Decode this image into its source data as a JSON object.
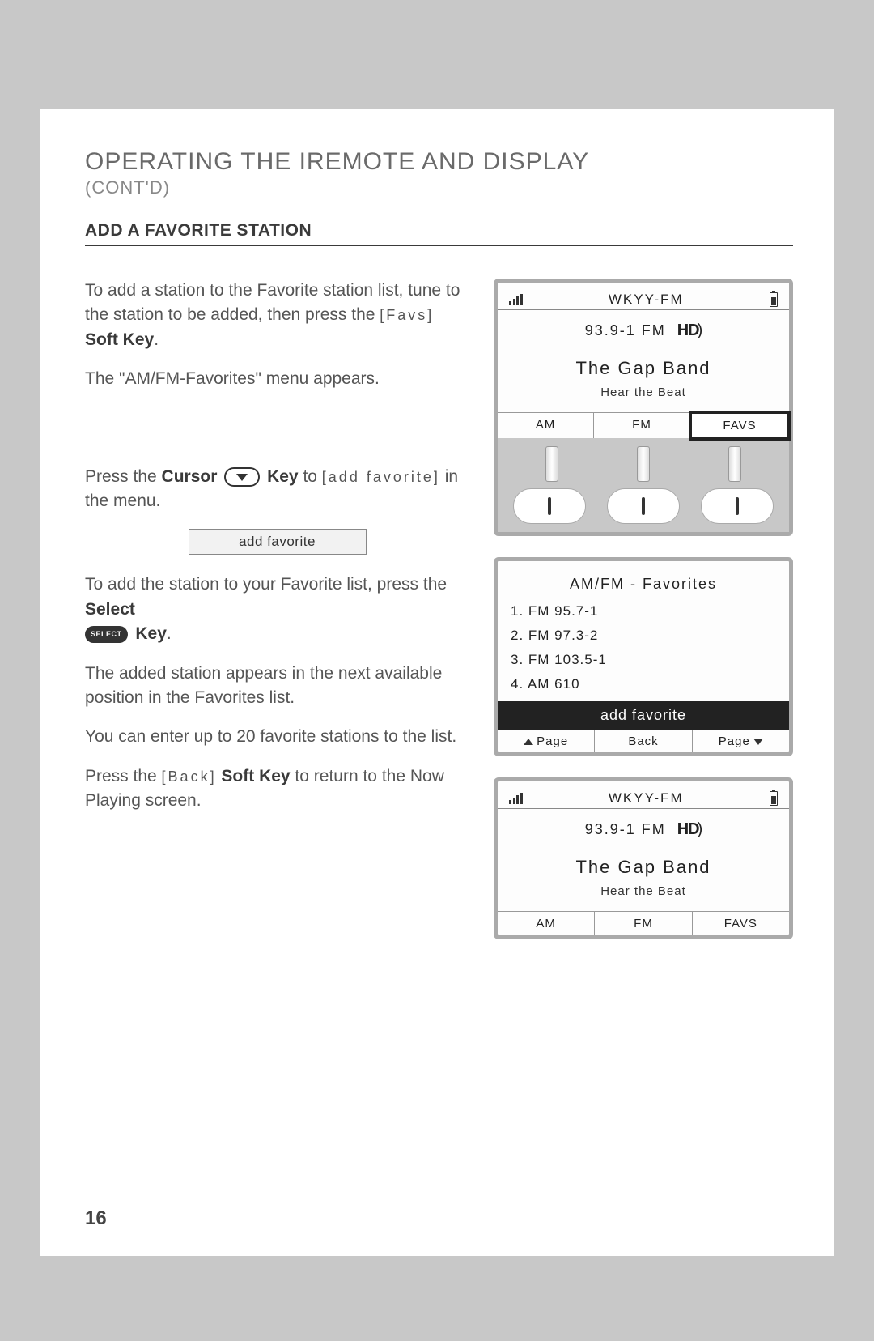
{
  "header": {
    "title": "OPERATING THE IREMOTE AND DISPLAY",
    "subtitle": "(CONT'D)",
    "section": "ADD A FAVORITE STATION"
  },
  "body": {
    "p1_a": "To add a station to the Favorite station list, tune to the station to be added, then press the ",
    "p1_soft": "[Favs]",
    "p1_b": " Soft Key",
    "p2": "The \"AM/FM-Favorites\" menu appears.",
    "p3_a": "Press the ",
    "p3_b": "Cursor",
    "p3_c": " Key",
    "p3_d": " to ",
    "p3_soft": "[add favorite]",
    "p3_e": " in the menu.",
    "addfav_btn": "add favorite",
    "p4_a": "To add the station to your Favorite list, press the ",
    "p4_b": "Select",
    "p4_select": "SELECT",
    "p4_c": " Key",
    "p5": "The added station appears in the next available position in the Favorites list.",
    "p6": "You can enter up to 20 favorite stations to the list.",
    "p7_a": "Press the ",
    "p7_soft": "[Back]",
    "p7_b": " Soft Key",
    "p7_c": " to return to the Now Playing screen."
  },
  "device1": {
    "station": "WKYY-FM",
    "freq": "93.9-1 FM",
    "hd": "HD",
    "artist": "The Gap Band",
    "track": "Hear the Beat",
    "tabs": {
      "am": "AM",
      "fm": "FM",
      "favs": "FAVS"
    }
  },
  "device2": {
    "title": "AM/FM - Favorites",
    "items": {
      "i1": "1. FM 95.7-1",
      "i2": "2. FM 97.3-2",
      "i3": "3. FM 103.5-1",
      "i4": "4. AM 610"
    },
    "add": "add favorite",
    "nav": {
      "page_up": "Page",
      "back": "Back",
      "page_down": "Page"
    }
  },
  "device3": {
    "station": "WKYY-FM",
    "freq": "93.9-1 FM",
    "hd": "HD",
    "artist": "The Gap Band",
    "track": "Hear the Beat",
    "tabs": {
      "am": "AM",
      "fm": "FM",
      "favs": "FAVS"
    }
  },
  "page_number": "16"
}
